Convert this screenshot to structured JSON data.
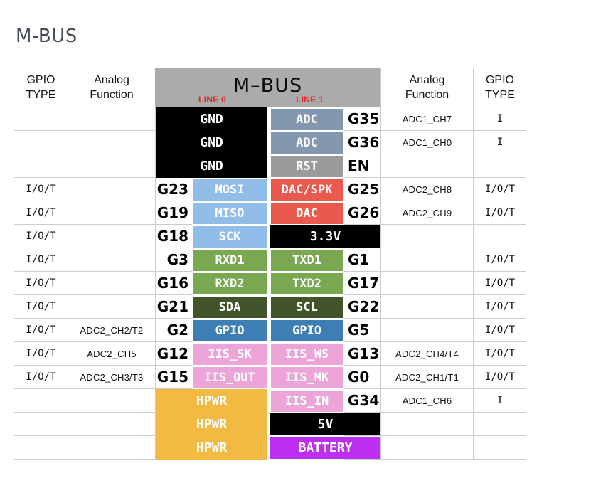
{
  "title": "M-BUS",
  "table": {
    "headers": {
      "gpio_type_left_line1": "GPIO",
      "gpio_type_left_line2": "TYPE",
      "analog_left_line1": "Analog",
      "analog_left_line2": "Function",
      "analog_right_line1": "Analog",
      "analog_right_line2": "Function",
      "gpio_type_right_line1": "GPIO",
      "gpio_type_right_line2": "TYPE"
    },
    "bus_header": {
      "title": "M–BUS",
      "line0": "LINE 0",
      "line1": "LINE 1"
    },
    "colors": {
      "band": "#ababab",
      "gnd": "#000000",
      "power": "#000000",
      "adc": "#8398b0",
      "rst": "#9b9b9b",
      "spi": "#92bde8",
      "dac": "#e9594e",
      "uart": "#79a851",
      "i2c": "#42552a",
      "gpio": "#3d7fb5",
      "iis": "#eda4d8",
      "hpwr": "#f2ba43",
      "battery": "#bd2ff0",
      "line_label": "#dd2723",
      "grid_line": "#cccccc",
      "title_text": "#454c56"
    },
    "rows": [
      {
        "type_l": "",
        "analog_l": "",
        "pin_l": "",
        "line0": null,
        "line1": {
          "label": "ADC",
          "color": "adc"
        },
        "pin_r": "G35",
        "analog_r": "ADC1_CH7",
        "type_r": "I"
      },
      {
        "type_l": "",
        "analog_l": "",
        "pin_l": "",
        "line0": null,
        "line1": {
          "label": "ADC",
          "color": "adc"
        },
        "pin_r": "G36",
        "analog_r": "ADC1_CH0",
        "type_r": "I"
      },
      {
        "type_l": "",
        "analog_l": "",
        "pin_l": "",
        "line0": null,
        "line1": {
          "label": "RST",
          "color": "rst"
        },
        "pin_r": "EN",
        "analog_r": "",
        "type_r": ""
      },
      {
        "type_l": "I/O/T",
        "analog_l": "",
        "pin_l": "G23",
        "line0": {
          "label": "MOSI",
          "color": "spi"
        },
        "line1": {
          "label": "DAC/SPK",
          "color": "dac"
        },
        "pin_r": "G25",
        "analog_r": "ADC2_CH8",
        "type_r": "I/O/T"
      },
      {
        "type_l": "I/O/T",
        "analog_l": "",
        "pin_l": "G19",
        "line0": {
          "label": "MISO",
          "color": "spi"
        },
        "line1": {
          "label": "DAC",
          "color": "dac"
        },
        "pin_r": "G26",
        "analog_r": "ADC2_CH9",
        "type_r": "I/O/T"
      },
      {
        "type_l": "I/O/T",
        "analog_l": "",
        "pin_l": "G18",
        "line0": {
          "label": "SCK",
          "color": "spi"
        },
        "line1": null,
        "pin_r": "",
        "analog_r": "",
        "type_r": ""
      },
      {
        "type_l": "I/O/T",
        "analog_l": "",
        "pin_l": "G3",
        "line0": {
          "label": "RXD1",
          "color": "uart"
        },
        "line1": {
          "label": "TXD1",
          "color": "uart"
        },
        "pin_r": "G1",
        "analog_r": "",
        "type_r": "I/O/T"
      },
      {
        "type_l": "I/O/T",
        "analog_l": "",
        "pin_l": "G16",
        "line0": {
          "label": "RXD2",
          "color": "uart"
        },
        "line1": {
          "label": "TXD2",
          "color": "uart"
        },
        "pin_r": "G17",
        "analog_r": "",
        "type_r": "I/O/T"
      },
      {
        "type_l": "I/O/T",
        "analog_l": "",
        "pin_l": "G21",
        "line0": {
          "label": "SDA",
          "color": "i2c"
        },
        "line1": {
          "label": "SCL",
          "color": "i2c"
        },
        "pin_r": "G22",
        "analog_r": "",
        "type_r": "I/O/T"
      },
      {
        "type_l": "I/O/T",
        "analog_l": "ADC2_CH2/T2",
        "pin_l": "G2",
        "line0": {
          "label": "GPIO",
          "color": "gpio"
        },
        "line1": {
          "label": "GPIO",
          "color": "gpio"
        },
        "pin_r": "G5",
        "analog_r": "",
        "type_r": "I/O/T"
      },
      {
        "type_l": "I/O/T",
        "analog_l": "ADC2_CH5",
        "pin_l": "G12",
        "line0": {
          "label": "IIS_SK",
          "color": "iis"
        },
        "line1": {
          "label": "IIS_WS",
          "color": "iis"
        },
        "pin_r": "G13",
        "analog_r": "ADC2_CH4/T4",
        "type_r": "I/O/T"
      },
      {
        "type_l": "I/O/T",
        "analog_l": "ADC2_CH3/T3",
        "pin_l": "G15",
        "line0": {
          "label": "IIS_OUT",
          "color": "iis"
        },
        "line1": {
          "label": "IIS_MK",
          "color": "iis"
        },
        "pin_r": "G0",
        "analog_r": "ADC2_CH1/T1",
        "type_r": "I/O/T"
      },
      {
        "type_l": "",
        "analog_l": "",
        "pin_l": "",
        "line0": null,
        "line1": {
          "label": "IIS_IN",
          "color": "iis"
        },
        "pin_r": "G34",
        "analog_r": "ADC1_CH6",
        "type_r": "I"
      },
      {
        "type_l": "",
        "analog_l": "",
        "pin_l": "",
        "line0": null,
        "line1": null,
        "pin_r": "",
        "analog_r": "",
        "type_r": ""
      },
      {
        "type_l": "",
        "analog_l": "",
        "pin_l": "",
        "line0": null,
        "line1": null,
        "pin_r": "",
        "analog_r": "",
        "type_r": ""
      }
    ],
    "blocks": {
      "gnd": {
        "labels": [
          "GND",
          "GND",
          "GND"
        ],
        "color": "gnd",
        "row": 1,
        "span": 3
      },
      "hpwr": {
        "labels": [
          "HPWR",
          "HPWR",
          "HPWR"
        ],
        "color": "hpwr",
        "row": 13,
        "span": 3
      },
      "right_power": [
        {
          "label": "3.3V",
          "color": "power",
          "row": 6
        },
        {
          "label": "5V",
          "color": "power",
          "row": 14
        },
        {
          "label": "BATTERY",
          "color": "battery",
          "row": 15
        }
      ]
    }
  }
}
